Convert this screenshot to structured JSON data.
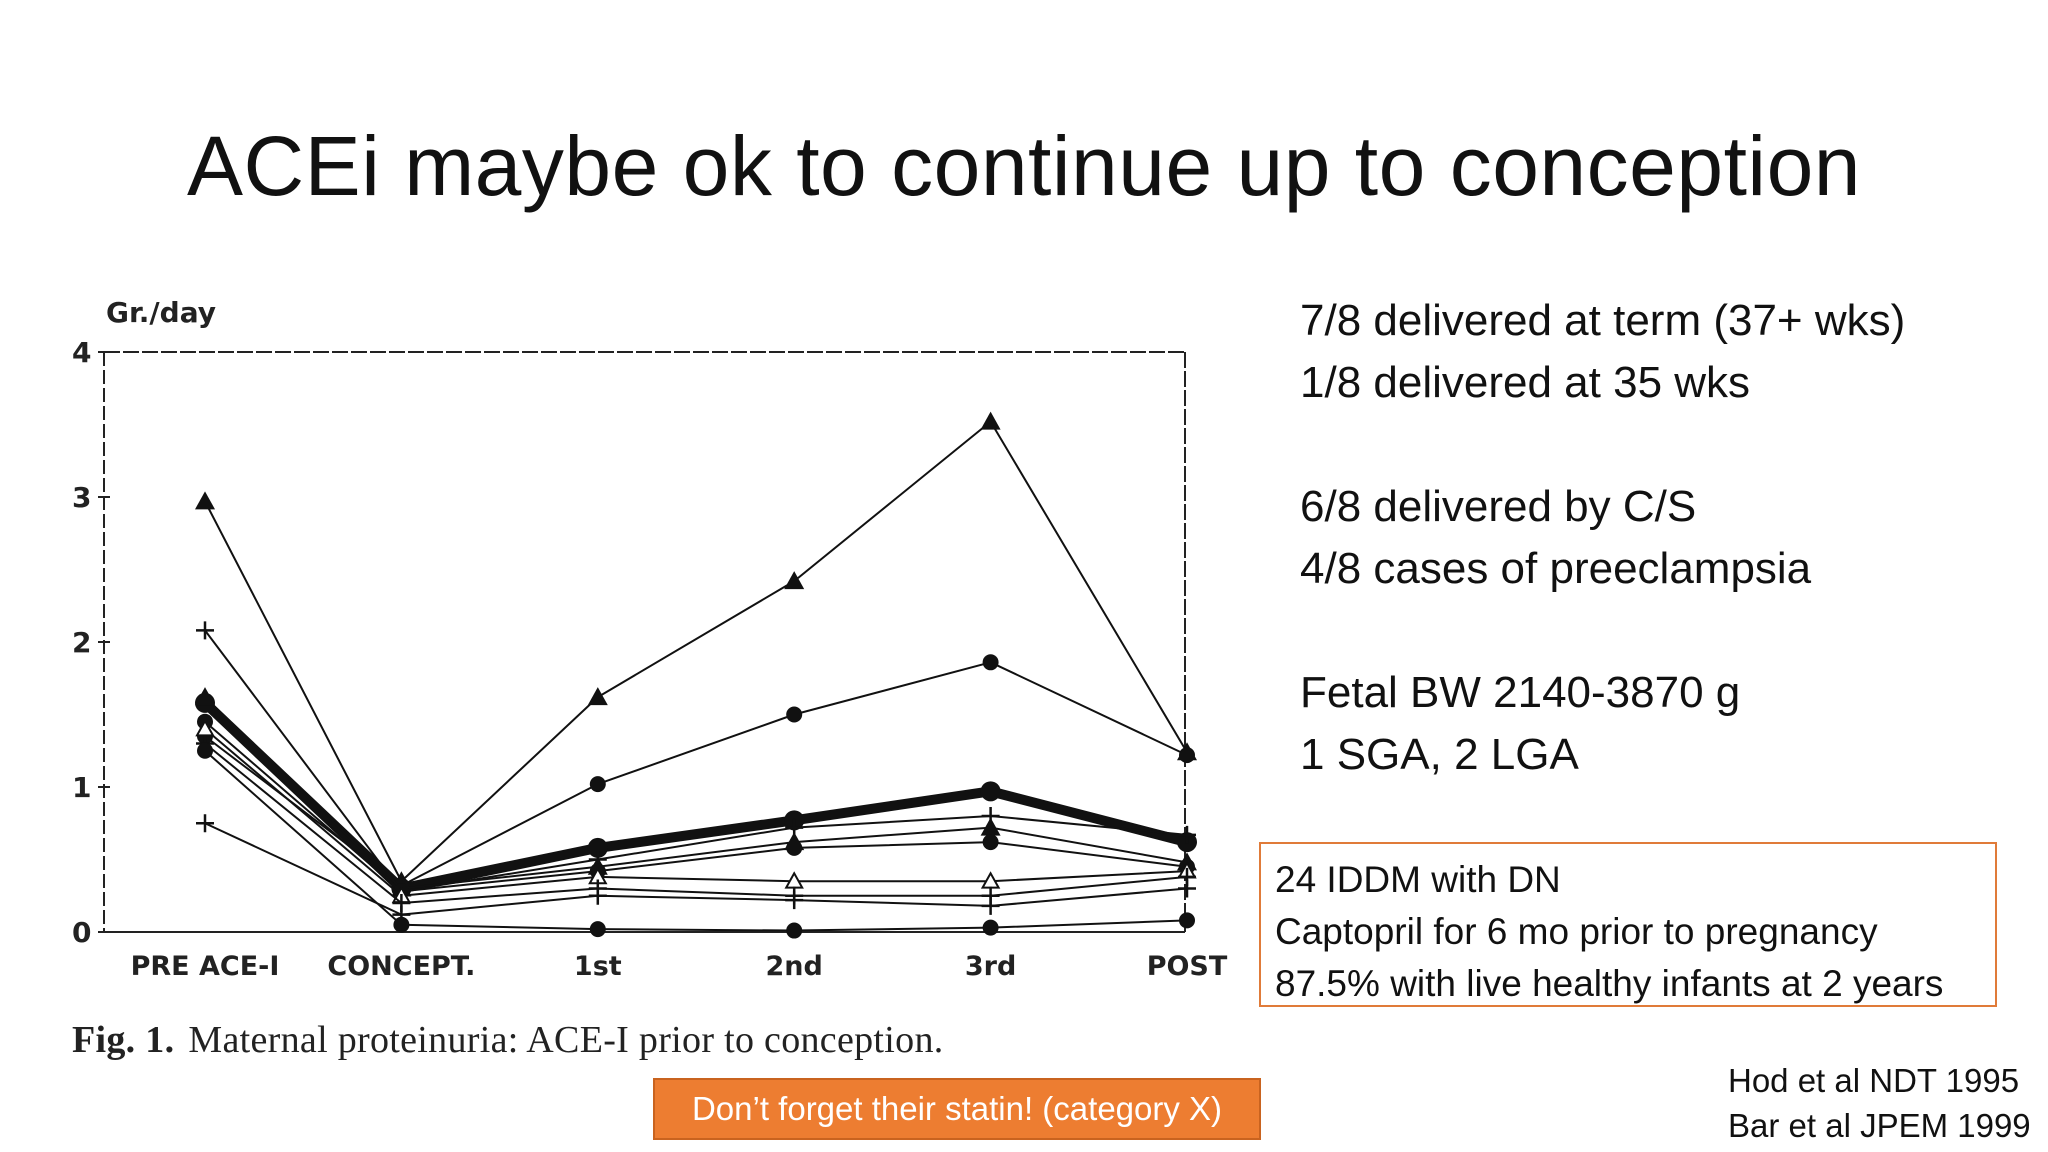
{
  "slide": {
    "title": "ACEi maybe ok to continue up to conception"
  },
  "facts": [
    "7/8 delivered at term (37+ wks)",
    "1/8 delivered at 35 wks",
    "6/8 delivered by C/S",
    "4/8 cases of preeclampsia",
    "Fetal BW 2140-3870 g",
    "1 SGA, 2 LGA"
  ],
  "study_box": {
    "lines": [
      "24 IDDM with DN",
      "Captopril for 6 mo prior to pregnancy",
      "87.5% with live healthy infants at 2 years"
    ],
    "border_color": "#e07b39"
  },
  "references": [
    "Hod et al NDT 1995",
    "Bar et al JPEM 1999"
  ],
  "statin_note": {
    "text": "Don’t forget their statin! (category X)",
    "color": "#ed7d31"
  },
  "figure": {
    "caption_label": "Fig. 1.",
    "caption_text": "Maternal proteinuria: ACE-I prior to conception."
  },
  "chart_data": {
    "type": "line",
    "ylabel": "Gr./day",
    "ylim": [
      0,
      4
    ],
    "yticks": [
      "0",
      "1",
      "2",
      "3",
      "4"
    ],
    "categories": [
      "PRE ACE-I",
      "CONCEPT.",
      "1st",
      "2nd",
      "3rd",
      "POST"
    ],
    "series": [
      {
        "marker": "triangle",
        "values": [
          2.97,
          0.35,
          1.62,
          2.42,
          3.52,
          1.24
        ]
      },
      {
        "marker": "circle",
        "values": [
          1.35,
          0.32,
          1.02,
          1.5,
          1.86,
          1.22
        ]
      },
      {
        "marker": "circle",
        "bold": true,
        "values": [
          1.58,
          0.3,
          0.58,
          0.77,
          0.97,
          0.62
        ]
      },
      {
        "marker": "plus",
        "values": [
          2.08,
          0.28,
          0.5,
          0.72,
          0.8,
          0.67
        ]
      },
      {
        "marker": "triangle",
        "values": [
          1.62,
          0.3,
          0.45,
          0.62,
          0.72,
          0.48
        ]
      },
      {
        "marker": "circle",
        "values": [
          1.45,
          0.28,
          0.42,
          0.58,
          0.62,
          0.45
        ]
      },
      {
        "marker": "triangle-open",
        "values": [
          1.4,
          0.25,
          0.38,
          0.35,
          0.35,
          0.42
        ]
      },
      {
        "marker": "plus",
        "values": [
          1.3,
          0.2,
          0.3,
          0.25,
          0.25,
          0.38
        ]
      },
      {
        "marker": "plus",
        "values": [
          0.75,
          0.12,
          0.25,
          0.22,
          0.18,
          0.3
        ]
      },
      {
        "marker": "circle",
        "values": [
          1.25,
          0.05,
          0.02,
          0.01,
          0.03,
          0.08
        ]
      }
    ]
  }
}
